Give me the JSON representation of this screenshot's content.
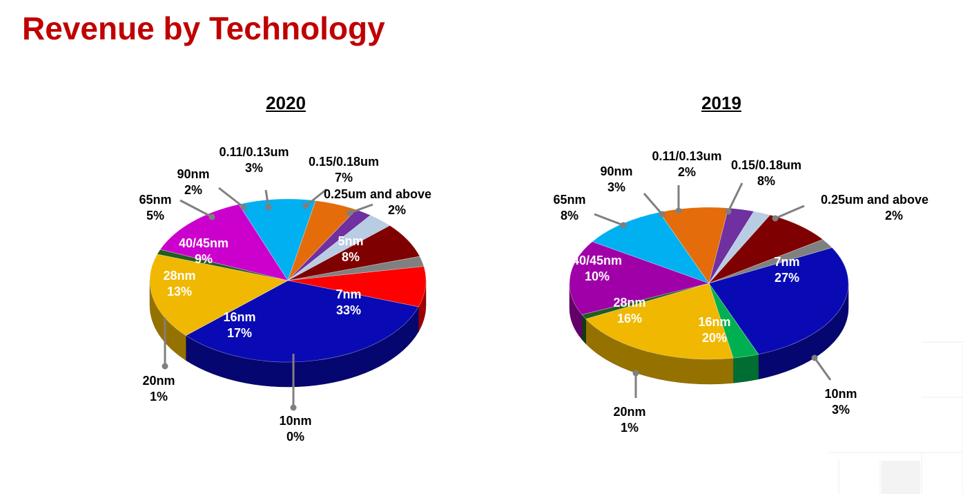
{
  "header": {
    "title": "Revenue by Technology"
  },
  "chart_data": [
    {
      "type": "pie",
      "title": "2020",
      "slices": [
        {
          "label": "5nm",
          "value": 8,
          "color": "#ff0000"
        },
        {
          "label": "7nm",
          "value": 33,
          "color": "#0a0ab4"
        },
        {
          "label": "10nm",
          "value": 0,
          "color": "#00b050"
        },
        {
          "label": "16nm",
          "value": 17,
          "color": "#f0b800"
        },
        {
          "label": "20nm",
          "value": 1,
          "color": "#1f5f1f"
        },
        {
          "label": "28nm",
          "value": 13,
          "color": "#cc00cc"
        },
        {
          "label": "40/45nm",
          "value": 9,
          "color": "#00b0f0"
        },
        {
          "label": "65nm",
          "value": 5,
          "color": "#e46c0a"
        },
        {
          "label": "90nm",
          "value": 2,
          "color": "#7030a0"
        },
        {
          "label": "0.11/0.13um",
          "value": 3,
          "color": "#b8cce4"
        },
        {
          "label": "0.15/0.18um",
          "value": 7,
          "color": "#7f0000"
        },
        {
          "label": "0.25um and above",
          "value": 2,
          "color": "#808080"
        }
      ]
    },
    {
      "type": "pie",
      "title": "2019",
      "slices": [
        {
          "label": "7nm",
          "value": 27,
          "color": "#0a0ab4"
        },
        {
          "label": "10nm",
          "value": 3,
          "color": "#00b050"
        },
        {
          "label": "16nm",
          "value": 20,
          "color": "#f0b800"
        },
        {
          "label": "20nm",
          "value": 1,
          "color": "#1f5f1f"
        },
        {
          "label": "28nm",
          "value": 16,
          "color": "#a000a8"
        },
        {
          "label": "40/45nm",
          "value": 10,
          "color": "#00b0f0"
        },
        {
          "label": "65nm",
          "value": 8,
          "color": "#e46c0a"
        },
        {
          "label": "90nm",
          "value": 3,
          "color": "#7030a0"
        },
        {
          "label": "0.11/0.13um",
          "value": 2,
          "color": "#b8cce4"
        },
        {
          "label": "0.15/0.18um",
          "value": 8,
          "color": "#7f0000"
        },
        {
          "label": "0.25um and above",
          "value": 2,
          "color": "#808080"
        }
      ]
    }
  ]
}
